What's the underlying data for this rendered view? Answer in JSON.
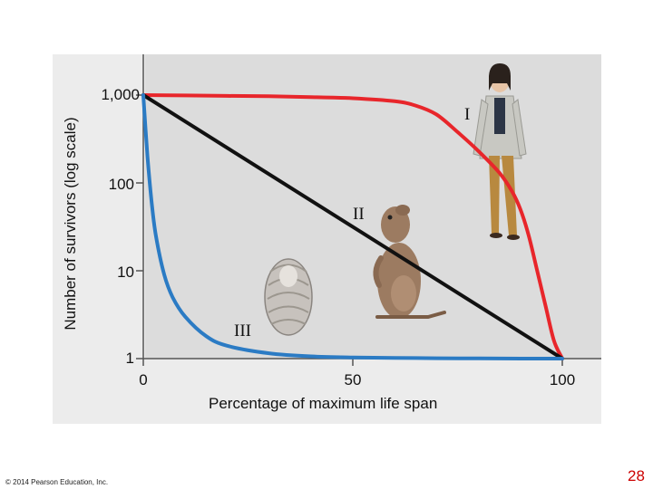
{
  "chart_data": {
    "type": "line",
    "title": "",
    "xlabel": "Percentage of maximum life span",
    "ylabel": "Number of survivors (log scale)",
    "xlim": [
      0,
      100
    ],
    "ylim": [
      1,
      1000
    ],
    "yscale": "log",
    "x_ticks": [
      0,
      50,
      100
    ],
    "x_tick_labels": [
      "0",
      "50",
      "100"
    ],
    "y_ticks": [
      1,
      10,
      100,
      1000
    ],
    "y_tick_labels": [
      "1",
      "10",
      "100",
      "1,000"
    ],
    "grid": false,
    "series": [
      {
        "name": "I",
        "color": "#e8262b",
        "x": [
          0,
          10,
          20,
          30,
          40,
          50,
          60,
          65,
          70,
          75,
          80,
          85,
          88,
          90,
          92,
          94,
          96,
          98,
          100
        ],
        "y": [
          1000,
          990,
          980,
          970,
          950,
          920,
          850,
          760,
          600,
          380,
          230,
          130,
          80,
          50,
          25,
          10,
          4,
          1.6,
          1
        ]
      },
      {
        "name": "II",
        "color": "#111111",
        "x": [
          0,
          100
        ],
        "y": [
          1000,
          1
        ]
      },
      {
        "name": "III",
        "color": "#2b7bc4",
        "x": [
          0,
          1,
          2,
          3,
          5,
          7,
          10,
          15,
          20,
          30,
          40,
          50,
          60,
          70,
          80,
          90,
          100
        ],
        "y": [
          1000,
          200,
          60,
          25,
          9,
          5,
          3,
          1.8,
          1.4,
          1.15,
          1.06,
          1.03,
          1.02,
          1.01,
          1.005,
          1.0,
          1.0
        ]
      }
    ]
  },
  "icons": {
    "oyster": "oyster-illustration",
    "squirrel": "ground-squirrel-illustration",
    "human": "human-illustration"
  },
  "footer": {
    "copyright": "© 2014 Pearson Education, Inc.",
    "page_number": "28"
  }
}
